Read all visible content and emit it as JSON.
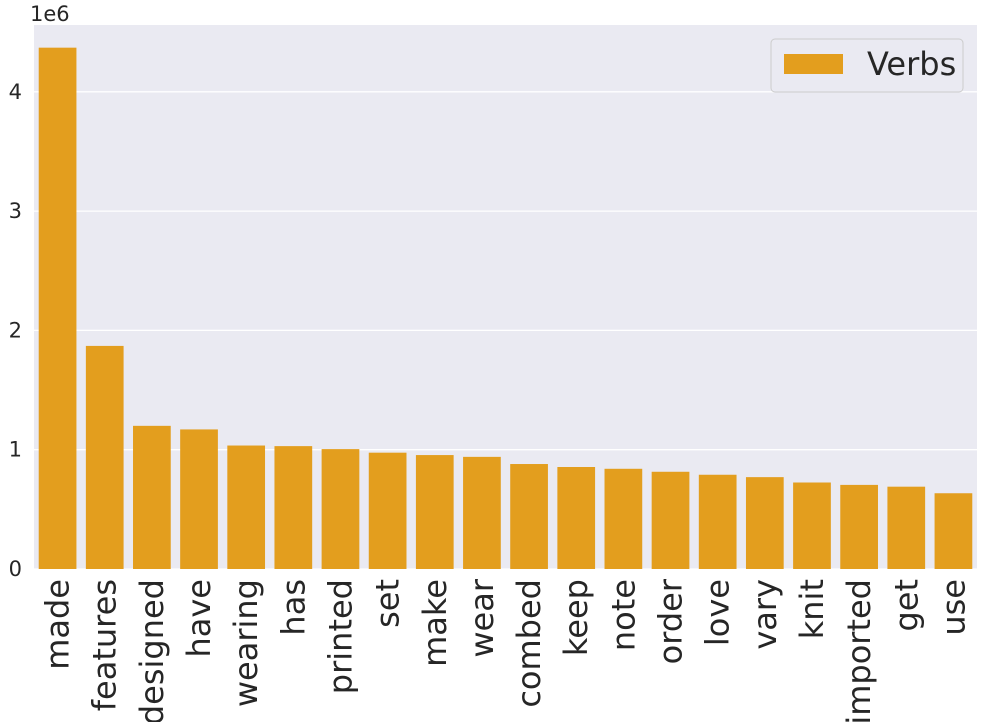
{
  "chart_data": {
    "type": "bar",
    "title": "",
    "xlabel": "",
    "ylabel": "",
    "y_offset_label": "1e6",
    "ylim": [
      0,
      4560000
    ],
    "y_ticks": [
      0,
      1000000,
      2000000,
      3000000,
      4000000
    ],
    "y_tick_labels": [
      "0",
      "1",
      "2",
      "3",
      "4"
    ],
    "grid": true,
    "legend_position": "top-right",
    "colors": {
      "bar": "#e39e1e",
      "plot_background": "#eaeaf2",
      "grid": "#ffffff"
    },
    "categories": [
      "made",
      "features",
      "designed",
      "have",
      "wearing",
      "has",
      "printed",
      "set",
      "make",
      "wear",
      "combed",
      "keep",
      "note",
      "order",
      "love",
      "vary",
      "knit",
      "imported",
      "get",
      "use"
    ],
    "series": [
      {
        "name": "Verbs",
        "values": [
          4370000,
          1870000,
          1200000,
          1170000,
          1035000,
          1030000,
          1005000,
          975000,
          955000,
          940000,
          880000,
          855000,
          840000,
          815000,
          790000,
          770000,
          725000,
          705000,
          690000,
          635000
        ]
      }
    ]
  }
}
